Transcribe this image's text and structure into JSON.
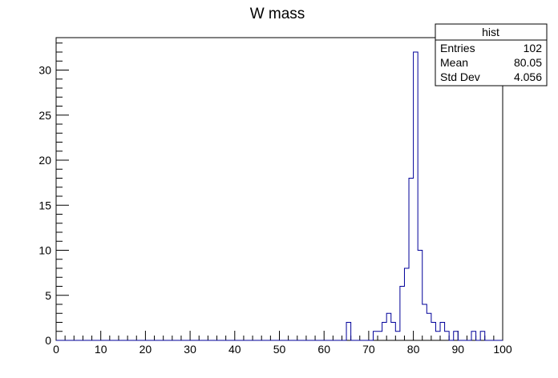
{
  "chart_data": {
    "type": "bar",
    "title": "W mass",
    "xlabel": "",
    "ylabel": "",
    "xlim": [
      0,
      100
    ],
    "ylim": [
      0,
      33.6
    ],
    "grid": false,
    "bin_width": 1,
    "x_ticks": [
      0,
      10,
      20,
      30,
      40,
      50,
      60,
      70,
      80,
      90,
      100
    ],
    "x_tick_labels": [
      "0",
      "10",
      "20",
      "30",
      "40",
      "50",
      "60",
      "70",
      "80",
      "90",
      "100"
    ],
    "y_ticks": [
      0,
      5,
      10,
      15,
      20,
      25,
      30
    ],
    "y_tick_labels": [
      "0",
      "5",
      "10",
      "15",
      "20",
      "25",
      "30"
    ],
    "line_color": "#000099",
    "bins": [
      {
        "x": 65,
        "count": 2
      },
      {
        "x": 71,
        "count": 1
      },
      {
        "x": 72,
        "count": 1
      },
      {
        "x": 73,
        "count": 2
      },
      {
        "x": 74,
        "count": 3
      },
      {
        "x": 75,
        "count": 2
      },
      {
        "x": 76,
        "count": 1
      },
      {
        "x": 77,
        "count": 6
      },
      {
        "x": 78,
        "count": 8
      },
      {
        "x": 79,
        "count": 18
      },
      {
        "x": 80,
        "count": 32
      },
      {
        "x": 81,
        "count": 10
      },
      {
        "x": 82,
        "count": 4
      },
      {
        "x": 83,
        "count": 3
      },
      {
        "x": 84,
        "count": 2
      },
      {
        "x": 85,
        "count": 1
      },
      {
        "x": 86,
        "count": 2
      },
      {
        "x": 87,
        "count": 1
      },
      {
        "x": 89,
        "count": 1
      },
      {
        "x": 93,
        "count": 1
      },
      {
        "x": 95,
        "count": 1
      }
    ],
    "stats_box": {
      "title": "hist",
      "placement": "top-right",
      "rows": [
        {
          "label": "Entries",
          "value": "102"
        },
        {
          "label": "Mean",
          "value": "80.05"
        },
        {
          "label": "Std Dev",
          "value": "4.056"
        }
      ]
    }
  }
}
